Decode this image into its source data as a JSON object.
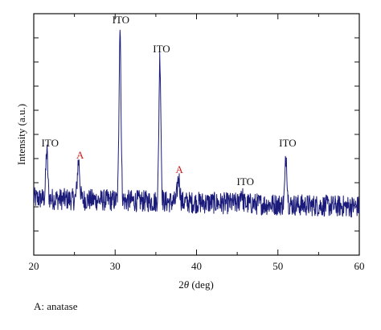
{
  "chart_data": {
    "type": "line",
    "xlabel_prefix": "2",
    "xlabel_symbol": "θ",
    "xlabel_suffix": " (deg)",
    "ylabel": "Intensity (a.u.)",
    "xlim": [
      20,
      60
    ],
    "ylim": [
      0,
      100
    ],
    "x_ticks": [
      20,
      30,
      40,
      50,
      60
    ],
    "x_tick_labels": [
      "20",
      "30",
      "40",
      "50",
      "60"
    ],
    "y_tick_labels": [],
    "grid": false,
    "line_color": "#1a1a7a",
    "baseline": 20,
    "peaks": [
      {
        "x": 21.6,
        "y": 40,
        "width": 0.12
      },
      {
        "x": 25.5,
        "y": 36,
        "width": 0.15
      },
      {
        "x": 30.6,
        "y": 92,
        "width": 0.12
      },
      {
        "x": 35.5,
        "y": 80,
        "width": 0.12
      },
      {
        "x": 37.8,
        "y": 30,
        "width": 0.15
      },
      {
        "x": 45.5,
        "y": 25,
        "width": 0.15
      },
      {
        "x": 51.0,
        "y": 40,
        "width": 0.13
      }
    ],
    "annotations": [
      {
        "text": "ITO",
        "x": 22.0,
        "y": 45,
        "color": "#111111"
      },
      {
        "text": "A",
        "x": 25.7,
        "y": 40,
        "color": "#cc2222"
      },
      {
        "text": "ITO",
        "x": 30.7,
        "y": 96,
        "color": "#111111"
      },
      {
        "text": "ITO",
        "x": 35.7,
        "y": 84,
        "color": "#111111"
      },
      {
        "text": "A",
        "x": 37.9,
        "y": 34,
        "color": "#cc2222"
      },
      {
        "text": "ITO",
        "x": 46.0,
        "y": 29,
        "color": "#111111"
      },
      {
        "text": "ITO",
        "x": 51.2,
        "y": 45,
        "color": "#111111"
      }
    ]
  },
  "footnote": "A: anatase"
}
